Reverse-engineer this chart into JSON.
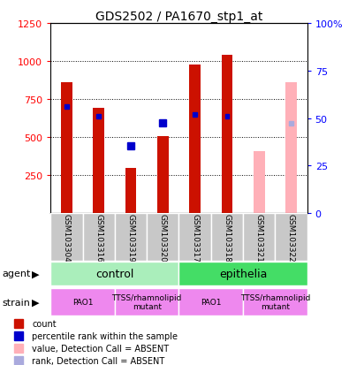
{
  "title": "GDS2502 / PA1670_stp1_at",
  "samples": [
    "GSM103304",
    "GSM103316",
    "GSM103319",
    "GSM103320",
    "GSM103317",
    "GSM103318",
    "GSM103321",
    "GSM103322"
  ],
  "count_values": [
    860,
    690,
    295,
    505,
    975,
    1040,
    null,
    null
  ],
  "count_absent": [
    null,
    null,
    null,
    null,
    null,
    null,
    410,
    860
  ],
  "rank_values_left": [
    700,
    635,
    null,
    null,
    650,
    635,
    null,
    null
  ],
  "rank_absent_left": [
    null,
    null,
    null,
    null,
    null,
    null,
    null,
    590
  ],
  "percentile_rank_left": [
    null,
    null,
    440,
    595,
    null,
    null,
    null,
    null
  ],
  "ylim_left": [
    0,
    1250
  ],
  "ylim_right": [
    0,
    100
  ],
  "yticks_left": [
    250,
    500,
    750,
    1000,
    1250
  ],
  "yticks_right": [
    0,
    25,
    50,
    75,
    100
  ],
  "right_labels": [
    "0",
    "25",
    "50",
    "75",
    "100%"
  ],
  "agent_groups": [
    {
      "label": "control",
      "start": 0,
      "end": 4,
      "color": "#AAEEBB"
    },
    {
      "label": "epithelia",
      "start": 4,
      "end": 8,
      "color": "#44DD66"
    }
  ],
  "strain_groups": [
    {
      "label": "PAO1",
      "start": 0,
      "end": 2,
      "color": "#EE88EE"
    },
    {
      "label": "TTSS/rhamnolipid\nmutant",
      "start": 2,
      "end": 4,
      "color": "#EE88EE"
    },
    {
      "label": "PAO1",
      "start": 4,
      "end": 6,
      "color": "#EE88EE"
    },
    {
      "label": "TTSS/rhamnolipid\nmutant",
      "start": 6,
      "end": 8,
      "color": "#EE88EE"
    }
  ],
  "count_color": "#CC1100",
  "rank_color": "#0000CC",
  "count_absent_color": "#FFB0B8",
  "rank_absent_color": "#AAAADD",
  "legend_items": [
    {
      "color": "#CC1100",
      "label": "count"
    },
    {
      "color": "#0000CC",
      "label": "percentile rank within the sample"
    },
    {
      "color": "#FFB0B8",
      "label": "value, Detection Call = ABSENT"
    },
    {
      "color": "#AAAADD",
      "label": "rank, Detection Call = ABSENT"
    }
  ]
}
